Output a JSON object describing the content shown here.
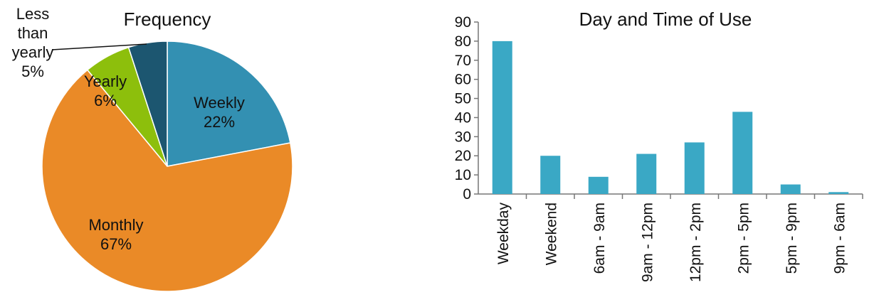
{
  "chart_data": [
    {
      "type": "pie",
      "title": "Frequency",
      "slices": [
        {
          "label": "Weekly",
          "value": 22,
          "value_label": "22%",
          "color": "#3390B2"
        },
        {
          "label": "Monthly",
          "value": 67,
          "value_label": "67%",
          "color": "#EA8A27"
        },
        {
          "label": "Yearly",
          "value": 6,
          "value_label": "6%",
          "color": "#8DBF0C"
        },
        {
          "label": "Less than yearly",
          "label_lines": [
            "Less",
            "than",
            "yearly"
          ],
          "value": 5,
          "value_label": "5%",
          "color": "#1C5670"
        }
      ]
    },
    {
      "type": "bar",
      "title": "Day and Time of Use",
      "categories": [
        "Weekday",
        "Weekend",
        "6am - 9am",
        "9am - 12pm",
        "12pm - 2pm",
        "2pm - 5pm",
        "5pm - 9pm",
        "9pm - 6am"
      ],
      "values": [
        80,
        20,
        9,
        21,
        27,
        43,
        5,
        1
      ],
      "ylim": [
        0,
        90
      ],
      "yticks": [
        0,
        10,
        20,
        30,
        40,
        50,
        60,
        70,
        80,
        90
      ],
      "xlabel": "",
      "ylabel": "",
      "grid": false,
      "color": "#3AA8C5"
    }
  ]
}
